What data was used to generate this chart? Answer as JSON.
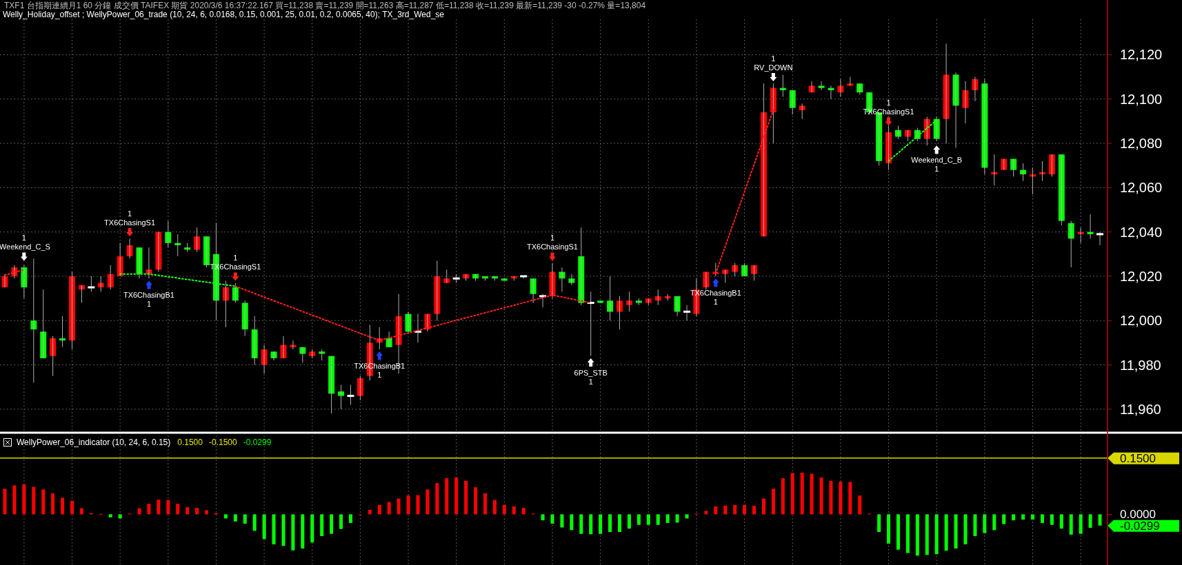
{
  "chart_data": [
    {
      "type": "candlestick",
      "title": "TXF1 台指期連續月1 60 分鐘 成交價 TAIFEX 期貨 2020/3/6 16:37:22.167 買=11,238 賣=11,239 開=11,263 高=11,287 低=11,238 收=11,239 最新=11,239 -30 -0.27% 量=13,804",
      "subtitle": "Welly_Holiday_offset ; WellyPower_06_trade (10, 24, 6, 0.0168, 0.15, 0.001, 25, 0.01, 0.2, 0.0065, 40); TX_3rd_Wed_se",
      "categories": [
        null,
        null,
        null,
        null,
        null,
        null,
        null,
        null,
        null,
        null,
        null,
        null,
        null,
        null,
        null,
        null,
        null,
        null,
        null,
        null,
        null,
        null,
        null,
        null,
        null,
        null,
        null,
        null,
        null,
        null,
        null,
        null,
        null,
        null,
        null,
        null,
        null,
        null,
        null,
        null,
        null,
        null,
        null,
        null,
        null,
        null,
        null,
        null,
        null,
        null,
        null,
        null,
        null,
        null,
        null,
        null,
        null,
        null,
        null,
        null,
        null,
        null,
        null,
        null,
        null,
        null,
        null,
        null,
        null,
        null,
        null,
        null,
        null,
        null,
        null,
        null,
        null,
        null,
        null,
        null,
        null,
        null,
        null,
        null,
        null,
        null,
        null,
        null,
        null,
        null,
        null,
        null,
        null,
        null,
        null,
        null,
        null,
        null,
        null,
        null,
        null,
        null,
        null,
        null,
        null,
        null,
        null,
        null,
        null,
        null,
        null,
        null,
        null,
        null,
        null
      ],
      "ohlc": [
        [
          12015,
          12021,
          12015,
          12020
        ],
        [
          12020,
          12025,
          12019,
          12024
        ],
        [
          12024,
          12025,
          12010,
          12015
        ],
        [
          12000,
          12028,
          11972,
          11996
        ],
        [
          11995,
          12014,
          11983,
          11983
        ],
        [
          11984,
          11993,
          11975,
          11992
        ],
        [
          11992,
          12002,
          11988,
          11991
        ],
        [
          11991,
          12022,
          11987,
          12020
        ],
        [
          12014,
          12016,
          12008,
          12016
        ],
        [
          12015,
          12020,
          12013,
          12015
        ],
        [
          12015,
          12020,
          12013,
          12017
        ],
        [
          12015,
          12025,
          12014,
          12021
        ],
        [
          12020,
          12035,
          12020,
          12029
        ],
        [
          12029,
          12037,
          12028,
          12034
        ],
        [
          12033,
          12033,
          12019,
          12021
        ],
        [
          12021,
          12033,
          12019,
          12023
        ],
        [
          12023,
          12040,
          12022,
          12040
        ],
        [
          12040,
          12045,
          12033,
          12035
        ],
        [
          12035,
          12039,
          12029,
          12034
        ],
        [
          12033,
          12035,
          12031,
          12032
        ],
        [
          12032,
          12042,
          12031,
          12038
        ],
        [
          12038,
          12038,
          12024,
          12025
        ],
        [
          12030,
          12044,
          12000,
          12009
        ],
        [
          12009,
          12018,
          11997,
          12015
        ],
        [
          12015,
          12017,
          12008,
          12009
        ],
        [
          12008,
          12009,
          11993,
          11996
        ],
        [
          11996,
          12002,
          11980,
          11983
        ],
        [
          11980,
          11989,
          11976,
          11987
        ],
        [
          11986,
          11986,
          11982,
          11983
        ],
        [
          11983,
          11993,
          11983,
          11989
        ],
        [
          11988,
          11991,
          11987,
          11989
        ],
        [
          11988,
          11988,
          11981,
          11985
        ],
        [
          11984,
          11987,
          11983,
          11986
        ],
        [
          11986,
          11987,
          11982,
          11985
        ],
        [
          11984,
          11984,
          11958,
          11967
        ],
        [
          11968,
          11971,
          11960,
          11966
        ],
        [
          11966,
          11971,
          11962,
          11966
        ],
        [
          11966,
          11975,
          11964,
          11974
        ],
        [
          11975,
          11998,
          11973,
          11990
        ],
        [
          11990,
          11997,
          11987,
          11992
        ],
        [
          11992,
          11995,
          11988,
          11988
        ],
        [
          11989,
          12012,
          11976,
          12002
        ],
        [
          12003,
          12004,
          11994,
          11995
        ],
        [
          11995,
          12003,
          11990,
          11995
        ],
        [
          11996,
          12003,
          11995,
          12003
        ],
        [
          12003,
          12027,
          12000,
          12020
        ],
        [
          12017,
          12023,
          12017,
          12019
        ],
        [
          12019,
          12021,
          12017,
          12019
        ],
        [
          12019,
          12021,
          12018,
          12021
        ],
        [
          12021,
          12021,
          12018,
          12019
        ],
        [
          12020,
          12020,
          12018,
          12019
        ],
        [
          12020,
          12020,
          12018,
          12019
        ],
        [
          12019,
          12019,
          12018,
          12018
        ],
        [
          12019,
          12020,
          12018,
          12020
        ],
        [
          12020,
          12020,
          12019,
          12020
        ],
        [
          12019,
          12019,
          12008,
          12012
        ],
        [
          12011,
          12012,
          12006,
          12011
        ],
        [
          12011,
          12026,
          12010,
          12022
        ],
        [
          12022,
          12024,
          12013,
          12019
        ],
        [
          12019,
          12021,
          12016,
          12017
        ],
        [
          12029,
          12042,
          12007,
          12008
        ],
        [
          12008,
          12013,
          11984,
          12008
        ],
        [
          12009,
          12009,
          12008,
          12008
        ],
        [
          12009,
          12020,
          12000,
          12004
        ],
        [
          12004,
          12011,
          11996,
          12009
        ],
        [
          12007,
          12013,
          12004,
          12009
        ],
        [
          12009,
          12010,
          12007,
          12008
        ],
        [
          12008,
          12010,
          12007,
          12010
        ],
        [
          12009,
          12014,
          12007,
          12011
        ],
        [
          12010,
          12012,
          12009,
          12011
        ],
        [
          12011,
          12011,
          12002,
          12004
        ],
        [
          12004,
          12007,
          12000,
          12004
        ],
        [
          12003,
          12019,
          12002,
          12014
        ],
        [
          12015,
          12022,
          12014,
          12022
        ],
        [
          12021,
          12026,
          12020,
          12022
        ],
        [
          12021,
          12023,
          12017,
          12023
        ],
        [
          12022,
          12026,
          12020,
          12025
        ],
        [
          12025,
          12026,
          12020,
          12020
        ],
        [
          12021,
          12025,
          12018,
          12025
        ],
        [
          12038,
          12107,
          12038,
          12094
        ],
        [
          12094,
          12107,
          12080,
          12105
        ],
        [
          12105,
          12111,
          12101,
          12104
        ],
        [
          12104,
          12104,
          12093,
          12096
        ],
        [
          12095,
          12098,
          12091,
          12097
        ],
        [
          12103,
          12108,
          12103,
          12106
        ],
        [
          12106,
          12108,
          12104,
          12105
        ],
        [
          12105,
          12106,
          12100,
          12104
        ],
        [
          12103,
          12109,
          12101,
          12106
        ],
        [
          12106,
          12110,
          12106,
          12107
        ],
        [
          12107,
          12107,
          12102,
          12103
        ],
        [
          12103,
          12103,
          12093,
          12094
        ],
        [
          12094,
          12094,
          12070,
          12072
        ],
        [
          12071,
          12088,
          12068,
          12085
        ],
        [
          12086,
          12088,
          12082,
          12083
        ],
        [
          12083,
          12086,
          12081,
          12086
        ],
        [
          12086,
          12087,
          12081,
          12082
        ],
        [
          12082,
          12092,
          12079,
          12091
        ],
        [
          12091,
          12092,
          12081,
          12082
        ],
        [
          12091,
          12125,
          12080,
          12111
        ],
        [
          12111,
          12112,
          12078,
          12097
        ],
        [
          12096,
          12108,
          12089,
          12104
        ],
        [
          12104,
          12110,
          12099,
          12109
        ],
        [
          12107,
          12109,
          12066,
          12069
        ],
        [
          12066,
          12075,
          12061,
          12067
        ],
        [
          12068,
          12073,
          12068,
          12073
        ],
        [
          12073,
          12073,
          12065,
          12068
        ],
        [
          12068,
          12071,
          12063,
          12066
        ],
        [
          12065,
          12069,
          12057,
          12066
        ],
        [
          12066,
          12072,
          12063,
          12067
        ],
        [
          12066,
          12075,
          12065,
          12075
        ],
        [
          12075,
          12075,
          12043,
          12045
        ],
        [
          12044,
          12045,
          12024,
          12037
        ],
        [
          12039,
          12042,
          12035,
          12040
        ],
        [
          12040,
          12048,
          12037,
          12039
        ],
        [
          12039,
          12040,
          12034,
          12039
        ]
      ],
      "series": [
        {
          "type": "line",
          "color": "#ff2020",
          "line_style": "dotted",
          "values": [
            12020.5,
            null,
            12023,
            null,
            null,
            null,
            null,
            null,
            null,
            null,
            null,
            null,
            null,
            null,
            null,
            null,
            null,
            null,
            null,
            null,
            null,
            null,
            null,
            null,
            null,
            null,
            null,
            null,
            null,
            null,
            null,
            null,
            null,
            null,
            null,
            null,
            null,
            null,
            null,
            null,
            null,
            null,
            null,
            null,
            null,
            null,
            null,
            null,
            null,
            null,
            null,
            null,
            null,
            null,
            null,
            null,
            null,
            null,
            null,
            null,
            null,
            null,
            null,
            null,
            null,
            null,
            null,
            null,
            null,
            null,
            null,
            null,
            null,
            null,
            null,
            null,
            null,
            null,
            null,
            null,
            null,
            null,
            null,
            null,
            null,
            null,
            null,
            null,
            null,
            null,
            null,
            null,
            null,
            null,
            null,
            null,
            null,
            null,
            null,
            null,
            null,
            null,
            null,
            null,
            null,
            null,
            null,
            null,
            null,
            null,
            null,
            null,
            null,
            null,
            null
          ]
        },
        {
          "type": "line",
          "color": "#20ff20",
          "line_style": "dotted",
          "values": [
            null,
            null,
            null,
            null,
            null,
            null,
            null,
            null,
            null,
            null,
            null,
            null,
            12021,
            null,
            null,
            12021,
            null,
            null,
            null,
            null,
            null,
            null,
            null,
            null,
            12015.5,
            null,
            null,
            null,
            null,
            null,
            null,
            null,
            null,
            null,
            null,
            null,
            null,
            null,
            null,
            null,
            null,
            null,
            null,
            null,
            null,
            null,
            null,
            null,
            null,
            null,
            null,
            null,
            null,
            null,
            null,
            null,
            null,
            null,
            null,
            null,
            null,
            null,
            null,
            null,
            null,
            null,
            null,
            null,
            null,
            null,
            null,
            null,
            null,
            null,
            null,
            null,
            null,
            null,
            null,
            null,
            null,
            null,
            null,
            null,
            null,
            null,
            null,
            null,
            null,
            null,
            null,
            null,
            null,
            null,
            null,
            null,
            null,
            null,
            null,
            null,
            null,
            null,
            null,
            null,
            null,
            null,
            null,
            null,
            null,
            null,
            null,
            null,
            null,
            null,
            null
          ]
        },
        {
          "type": "line",
          "color": "#ff2020",
          "line_style": "dotted",
          "values": [
            null,
            null,
            null,
            null,
            null,
            null,
            null,
            null,
            null,
            null,
            null,
            null,
            null,
            null,
            null,
            null,
            null,
            null,
            null,
            null,
            null,
            null,
            null,
            null,
            12015.5,
            null,
            null,
            null,
            null,
            null,
            null,
            null,
            null,
            null,
            null,
            null,
            null,
            null,
            null,
            11991,
            null,
            null,
            null,
            null,
            null,
            null,
            null,
            null,
            null,
            null,
            null,
            null,
            null,
            null,
            null,
            null,
            null,
            12011.5,
            null,
            null,
            null,
            12008,
            null,
            null,
            null,
            null,
            null,
            null,
            null,
            null,
            null,
            null,
            null,
            null,
            null,
            null,
            null,
            null,
            null,
            null,
            null,
            null,
            null,
            null,
            null,
            null,
            null,
            null,
            null,
            null,
            null,
            null,
            null,
            null,
            null,
            null,
            null,
            null,
            null,
            null,
            null,
            null,
            null,
            null,
            null,
            null,
            null,
            null,
            null,
            null,
            null,
            null,
            null,
            null,
            null
          ]
        },
        {
          "type": "line",
          "color": "#ff2020",
          "line_style": "dotted",
          "values": [
            null,
            null,
            null,
            null,
            null,
            null,
            null,
            null,
            null,
            null,
            null,
            null,
            null,
            null,
            null,
            null,
            null,
            null,
            null,
            null,
            null,
            null,
            null,
            null,
            null,
            null,
            null,
            null,
            null,
            null,
            null,
            null,
            null,
            null,
            null,
            null,
            null,
            null,
            null,
            null,
            null,
            null,
            null,
            null,
            null,
            null,
            null,
            null,
            null,
            null,
            null,
            null,
            null,
            null,
            null,
            null,
            null,
            null,
            null,
            null,
            null,
            null,
            null,
            null,
            null,
            null,
            null,
            null,
            null,
            null,
            null,
            null,
            null,
            null,
            12021.3,
            null,
            null,
            null,
            null,
            null,
            12095,
            null,
            null,
            null,
            null,
            null,
            null,
            null,
            null,
            null,
            null,
            null,
            null,
            null,
            null,
            null,
            null,
            null,
            null,
            null,
            null,
            null,
            null,
            null,
            null,
            null,
            null,
            null,
            null,
            null,
            null,
            null,
            null,
            null,
            null
          ]
        },
        {
          "type": "line",
          "color": "#20ff20",
          "line_style": "dotted",
          "values": [
            null,
            null,
            null,
            null,
            null,
            null,
            null,
            null,
            null,
            null,
            null,
            null,
            null,
            null,
            null,
            null,
            null,
            null,
            null,
            null,
            null,
            null,
            null,
            null,
            null,
            null,
            null,
            null,
            null,
            null,
            null,
            null,
            null,
            null,
            null,
            null,
            null,
            null,
            null,
            null,
            null,
            null,
            null,
            null,
            null,
            null,
            null,
            null,
            null,
            null,
            null,
            null,
            null,
            null,
            null,
            null,
            null,
            null,
            null,
            null,
            null,
            null,
            null,
            null,
            null,
            null,
            null,
            null,
            null,
            null,
            null,
            null,
            null,
            null,
            null,
            null,
            null,
            null,
            null,
            null,
            null,
            null,
            null,
            null,
            null,
            null,
            null,
            null,
            null,
            null,
            null,
            null,
            12072,
            null,
            null,
            null,
            null,
            12090.5,
            null,
            null,
            null,
            null,
            null,
            null,
            null,
            null,
            null,
            null,
            null,
            null,
            null,
            null,
            null,
            null,
            null
          ]
        }
      ],
      "ylim": [
        11950,
        12136
      ],
      "yticks": [
        {
          "value": 11960,
          "label": "11,960"
        },
        {
          "value": 11980,
          "label": "11,980"
        },
        {
          "value": 12000,
          "label": "12,000"
        },
        {
          "value": 12020,
          "label": "12,020"
        },
        {
          "value": 12040,
          "label": "12,040"
        },
        {
          "value": 12060,
          "label": "12,060"
        },
        {
          "value": 12080,
          "label": "12,080"
        },
        {
          "value": 12100,
          "label": "12,100"
        },
        {
          "value": 12120,
          "label": "12,120"
        }
      ],
      "grid": true,
      "annotations": [
        "Weekend_C_S",
        "1",
        "TX6ChasingS1",
        "1",
        "TX6ChasingB1",
        "1",
        "TX6ChasingS1",
        "1",
        "TX6ChasingB1",
        "1",
        "TX6ChasingS1",
        "1",
        "6PS_STB",
        "1",
        "TX6ChasingB1",
        "1",
        "RV_DOWN",
        "1",
        "TX6ChasingS1",
        "1",
        "Weekend_C_B",
        "1"
      ]
    },
    {
      "type": "bar",
      "title": "WellyPower_06_indicator  (10, 24, 6, 0.15)",
      "categories": [
        null,
        null,
        null,
        null,
        null,
        null,
        null,
        null,
        null,
        null,
        null,
        null,
        null,
        null,
        null,
        null,
        null,
        null,
        null,
        null,
        null,
        null,
        null,
        null,
        null,
        null,
        null,
        null,
        null,
        null,
        null,
        null,
        null,
        null,
        null,
        null,
        null,
        null,
        null,
        null,
        null,
        null,
        null,
        null,
        null,
        null,
        null,
        null,
        null,
        null,
        null,
        null,
        null,
        null,
        null,
        null,
        null,
        null,
        null,
        null,
        null,
        null,
        null,
        null,
        null,
        null,
        null,
        null,
        null,
        null,
        null,
        null,
        null,
        null,
        null,
        null,
        null,
        null,
        null,
        null,
        null,
        null,
        null,
        null,
        null,
        null,
        null,
        null,
        null,
        null,
        null,
        null,
        null,
        null,
        null,
        null,
        null,
        null,
        null,
        null,
        null,
        null,
        null,
        null,
        null,
        null,
        null,
        null,
        null,
        null,
        null,
        null,
        null,
        null,
        null
      ],
      "values": [
        0.068,
        0.077,
        0.08,
        0.073,
        0.066,
        0.056,
        0.044,
        0.036,
        0.016,
        0.003,
        0.001,
        -0.008,
        -0.011,
        0.002,
        0.016,
        0.028,
        0.039,
        0.038,
        0.028,
        0.019,
        0.017,
        0.011,
        0.003,
        -0.011,
        -0.019,
        -0.025,
        -0.044,
        -0.066,
        -0.08,
        -0.084,
        -0.096,
        -0.091,
        -0.075,
        -0.058,
        -0.052,
        -0.039,
        -0.023,
        0,
        0.012,
        0.025,
        0.033,
        0.042,
        0.05,
        0.051,
        0.066,
        0.083,
        0.096,
        0.098,
        0.089,
        0.072,
        0.056,
        0.038,
        0.025,
        0.021,
        0.017,
        0.002,
        -0.016,
        -0.025,
        -0.035,
        -0.042,
        -0.052,
        -0.053,
        -0.052,
        -0.047,
        -0.047,
        -0.038,
        -0.028,
        -0.028,
        -0.028,
        -0.023,
        -0.022,
        -0.011,
        0.002,
        0.009,
        0.021,
        0.023,
        0.025,
        0.025,
        0.023,
        0.042,
        0.068,
        0.096,
        0.11,
        0.111,
        0.108,
        0.098,
        0.089,
        0.087,
        0.086,
        0.05,
        0.002,
        -0.047,
        -0.078,
        -0.094,
        -0.103,
        -0.11,
        -0.108,
        -0.106,
        -0.097,
        -0.091,
        -0.08,
        -0.058,
        -0.05,
        -0.042,
        -0.026,
        -0.016,
        -0.014,
        -0.014,
        -0.023,
        -0.028,
        -0.038,
        -0.054,
        -0.052,
        -0.036,
        -0.0299
      ],
      "ylim": [
        -0.135,
        0.21
      ],
      "yticks": [
        {
          "value": 0,
          "label": "0.0000"
        },
        {
          "value": 0.15,
          "label": "0.1500"
        }
      ],
      "ref_lines": [
        {
          "axis": "y",
          "value": 0.15,
          "color": "#d8d800"
        }
      ],
      "grid": "x",
      "annotations": [
        "0.1500",
        "-0.1500",
        "-0.0299",
        "-0.0299"
      ]
    }
  ]
}
